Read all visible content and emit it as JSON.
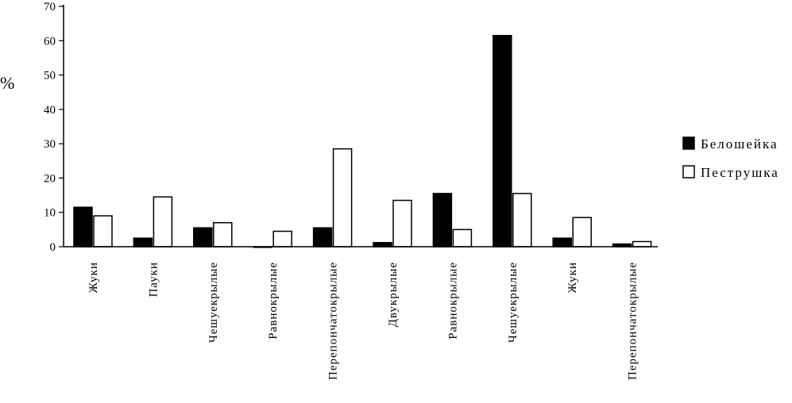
{
  "chart_data": {
    "type": "bar",
    "ylabel": "%",
    "ylim": [
      0,
      70
    ],
    "yticks": [
      0,
      10,
      20,
      30,
      40,
      50,
      60,
      70
    ],
    "grid": false,
    "legend_position": "right",
    "categories": [
      "Жуки",
      "Пауки",
      "Чешуекрылые",
      "Равнокрылые",
      "Перепончатокрылые",
      "Двукрылые",
      "Равнокрылые",
      "Чешуекрылые",
      "Жуки",
      "Перепончатокрылые"
    ],
    "series": [
      {
        "name": "Белошейка",
        "color": "#000000",
        "values": [
          11.5,
          2.5,
          5.5,
          0,
          5.5,
          1.2,
          15.5,
          61.5,
          2.5,
          0.8
        ]
      },
      {
        "name": "Пеструшка",
        "color": "#ffffff",
        "values": [
          9,
          14.5,
          7,
          4.5,
          28.5,
          13.5,
          5,
          15.5,
          8.5,
          1.5
        ]
      }
    ]
  }
}
